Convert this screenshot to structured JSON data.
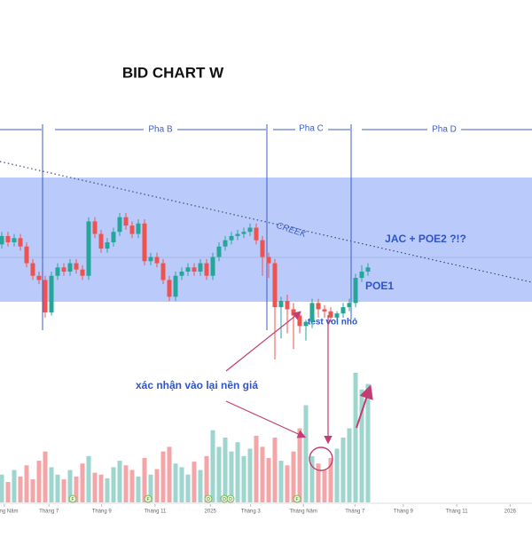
{
  "chart_data": {
    "type": "candlestick",
    "title": "BID CHART W",
    "open": [
      130,
      138,
      132,
      136,
      128,
      112,
      100,
      96,
      65,
      100,
      108,
      104,
      112,
      106,
      100,
      152,
      140,
      126,
      132,
      142,
      156,
      148,
      140,
      150,
      114,
      118,
      112,
      96,
      80,
      100,
      104,
      108,
      104,
      112,
      100,
      118,
      128,
      134,
      138,
      140,
      142,
      146,
      134,
      118,
      112,
      70,
      76,
      68,
      62,
      52,
      56,
      74,
      68,
      66,
      60,
      64,
      70,
      74,
      98,
      104
    ],
    "close": [
      138,
      132,
      136,
      128,
      112,
      100,
      96,
      65,
      100,
      108,
      104,
      112,
      106,
      100,
      152,
      140,
      126,
      132,
      142,
      156,
      148,
      140,
      150,
      114,
      118,
      112,
      96,
      80,
      100,
      104,
      108,
      104,
      112,
      100,
      118,
      128,
      134,
      138,
      140,
      142,
      146,
      134,
      118,
      112,
      70,
      76,
      68,
      62,
      52,
      56,
      74,
      68,
      66,
      60,
      64,
      70,
      74,
      98,
      104,
      108
    ],
    "high": [
      142,
      142,
      140,
      140,
      132,
      116,
      104,
      100,
      104,
      112,
      112,
      116,
      116,
      110,
      156,
      156,
      144,
      136,
      146,
      160,
      160,
      152,
      154,
      154,
      122,
      122,
      116,
      100,
      104,
      108,
      112,
      112,
      116,
      116,
      122,
      132,
      138,
      142,
      144,
      146,
      150,
      150,
      138,
      122,
      116,
      80,
      82,
      74,
      66,
      58,
      78,
      78,
      72,
      70,
      66,
      74,
      78,
      102,
      110,
      112
    ],
    "low": [
      126,
      128,
      128,
      124,
      108,
      96,
      92,
      60,
      62,
      96,
      100,
      100,
      102,
      96,
      96,
      136,
      122,
      122,
      128,
      138,
      144,
      136,
      136,
      110,
      110,
      108,
      92,
      76,
      76,
      96,
      100,
      100,
      100,
      96,
      96,
      114,
      124,
      130,
      134,
      136,
      138,
      130,
      100,
      98,
      20,
      40,
      45,
      30,
      45,
      38,
      50,
      60,
      60,
      56,
      56,
      60,
      66,
      70,
      94,
      100
    ],
    "up_color": "#26a69a",
    "down_color": "#ef5350",
    "volume": {
      "values": [
        30,
        22,
        35,
        28,
        40,
        25,
        45,
        55,
        38,
        30,
        25,
        35,
        28,
        42,
        50,
        32,
        30,
        26,
        38,
        45,
        40,
        35,
        28,
        48,
        30,
        36,
        55,
        60,
        42,
        38,
        30,
        44,
        35,
        50,
        78,
        60,
        70,
        55,
        65,
        50,
        58,
        72,
        60,
        48,
        70,
        45,
        40,
        55,
        80,
        105,
        50,
        42,
        35,
        48,
        58,
        70,
        80,
        140,
        122,
        128
      ],
      "up_color": "#9ed6cf",
      "down_color": "#f3a5a8"
    },
    "xticks": [
      {
        "value": 0.4,
        "label": "Tháng Năm"
      },
      {
        "value": 7.6,
        "label": "Tháng 7"
      },
      {
        "value": 16.1,
        "label": "Tháng 9"
      },
      {
        "value": 24.7,
        "label": "Tháng 11"
      },
      {
        "value": 33.6,
        "label": "2025"
      },
      {
        "value": 40.1,
        "label": "Tháng 3"
      },
      {
        "value": 48.6,
        "label": "Tháng Năm"
      },
      {
        "value": 56.9,
        "label": "Tháng 7"
      },
      {
        "value": 64.7,
        "label": "Tháng 9"
      },
      {
        "value": 73.3,
        "label": "Tháng 11"
      },
      {
        "value": 81.9,
        "label": "2026"
      }
    ],
    "phases": [
      "Pha B",
      "Pha C",
      "Pha D"
    ],
    "annotations": {
      "creek": "CREEK",
      "jac": "JAC + POE2 ?!?",
      "poe1": "POE1",
      "test": "test vol nhỏ",
      "confirm": "xác nhận vào lại nền giá"
    },
    "events": [
      "F",
      "F",
      "D",
      "D",
      "D",
      "F"
    ]
  }
}
